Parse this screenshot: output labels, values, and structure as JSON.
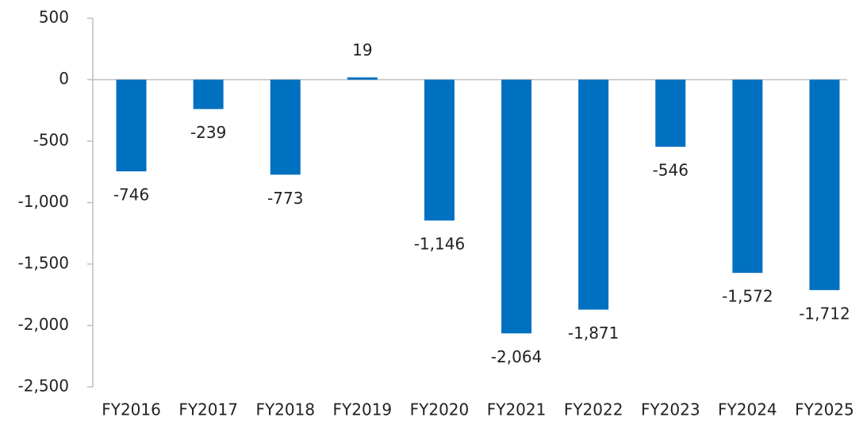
{
  "chart_data": {
    "type": "bar",
    "categories": [
      "FY2016",
      "FY2017",
      "FY2018",
      "FY2019",
      "FY2020",
      "FY2021",
      "FY2022",
      "FY2023",
      "FY2024",
      "FY2025"
    ],
    "values": [
      -746,
      -239,
      -773,
      19,
      -1146,
      -2064,
      -1871,
      -546,
      -1572,
      -1712
    ],
    "value_labels": [
      "-746",
      "-239",
      "-773",
      "19",
      "-1,146",
      "-2,064",
      "-1,871",
      "-546",
      "-1,572",
      "-1,712"
    ],
    "color": "#0070c0",
    "ylim": [
      -2500,
      500
    ],
    "yticks": [
      {
        "value": -2500,
        "label": "-2,500"
      },
      {
        "value": -2000,
        "label": "-2,000"
      },
      {
        "value": -1500,
        "label": "-1,500"
      },
      {
        "value": -1000,
        "label": "-1,000"
      },
      -500,
      0,
      500
    ]
  }
}
